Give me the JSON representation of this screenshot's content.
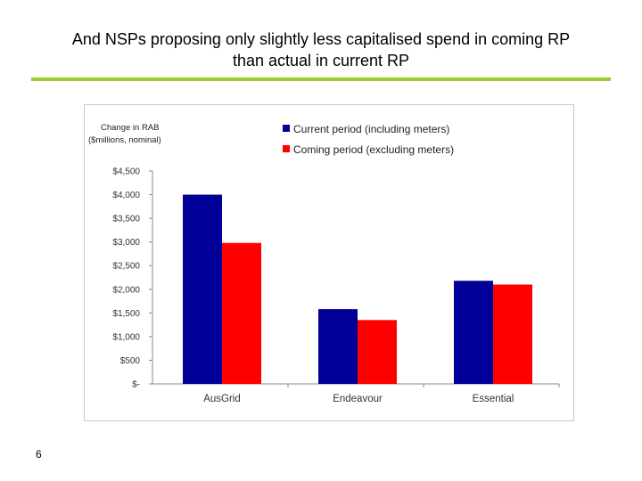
{
  "slide": {
    "title_line1": "And NSPs proposing only slightly less capitalised spend in coming RP",
    "title_line2": "than actual in current RP",
    "page_number": "6",
    "accent_color": "#9acd32"
  },
  "chart_data": {
    "type": "bar",
    "ylabel_line1": "Change in RAB",
    "ylabel_line2": "($millions, nominal)",
    "categories": [
      "AusGrid",
      "Endeavour",
      "Essential"
    ],
    "series": [
      {
        "name": "Current period  (including meters)",
        "color": "#000099",
        "values": [
          4000,
          1580,
          2180
        ]
      },
      {
        "name": "Coming period (excluding meters)",
        "color": "#ff0000",
        "values": [
          2980,
          1350,
          2100
        ]
      }
    ],
    "ylim": [
      0,
      4500
    ],
    "yticks": [
      0,
      500,
      1000,
      1500,
      2000,
      2500,
      3000,
      3500,
      4000,
      4500
    ],
    "ytick_labels": [
      "$-",
      "$500",
      "$1,000",
      "$1,500",
      "$2,000",
      "$2,500",
      "$3,000",
      "$3,500",
      "$4,000",
      "$4,500"
    ],
    "legend_position": "top-right",
    "grid": false
  }
}
